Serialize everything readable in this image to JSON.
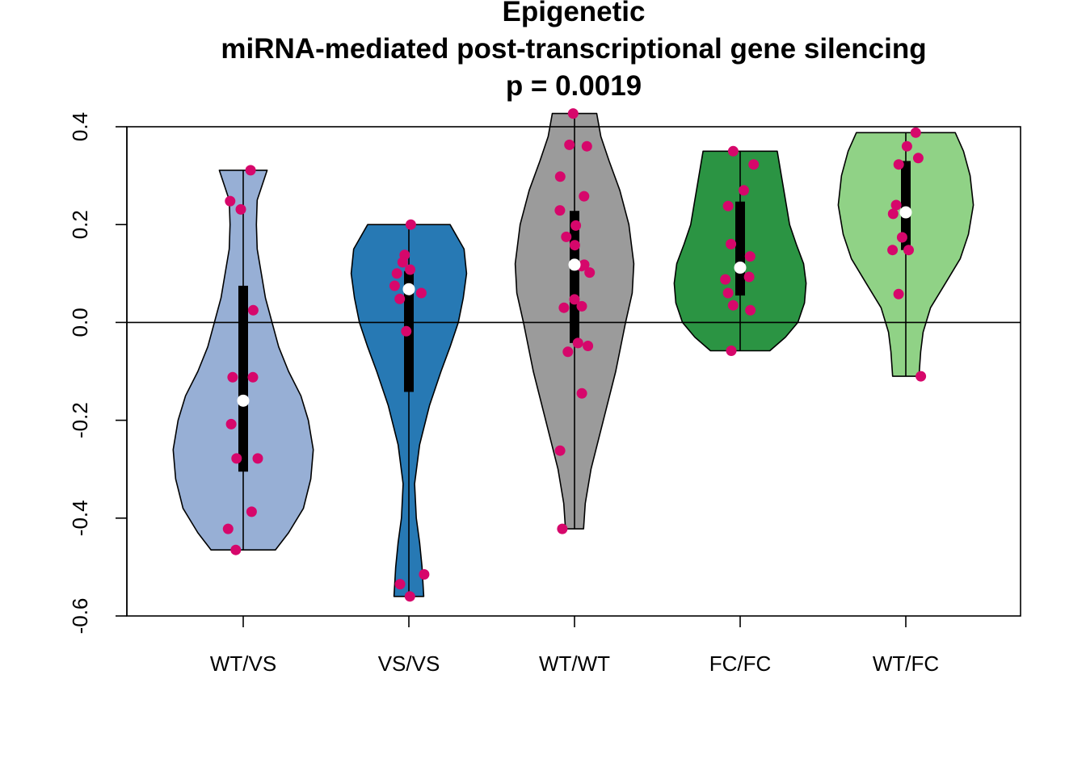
{
  "chart_data": {
    "type": "violin",
    "title_lines": [
      "Epigenetic",
      "miRNA-mediated post-transcriptional gene silencing",
      "p = 0.0019"
    ],
    "xlabel": "",
    "ylabel": "",
    "ylim": [
      -0.6,
      0.4
    ],
    "yticks": [
      -0.6,
      -0.4,
      -0.2,
      0.0,
      0.2,
      0.4
    ],
    "ytick_labels": [
      "-0.6",
      "-0.4",
      "-0.2",
      "0.0",
      "0.2",
      "0.4"
    ],
    "reference_line": 0.0,
    "grid": false,
    "categories": [
      "WT/VS",
      "VS/VS",
      "WT/WT",
      "FC/FC",
      "WT/FC"
    ],
    "colors": {
      "fills": [
        "#97afd5",
        "#2779b4",
        "#9b9b9b",
        "#2b9443",
        "#90d286"
      ],
      "points": "#d6076b",
      "median": "#ffffff",
      "box": "#000000"
    },
    "series": [
      {
        "category": "WT/VS",
        "min": -0.465,
        "max": 0.311,
        "q1": -0.305,
        "median": -0.16,
        "q3": 0.075,
        "density_profile": [
          [
            -0.465,
            0.39
          ],
          [
            -0.43,
            0.55
          ],
          [
            -0.38,
            0.73
          ],
          [
            -0.32,
            0.82
          ],
          [
            -0.26,
            0.85
          ],
          [
            -0.2,
            0.79
          ],
          [
            -0.15,
            0.7
          ],
          [
            -0.1,
            0.55
          ],
          [
            -0.05,
            0.43
          ],
          [
            0.0,
            0.35
          ],
          [
            0.05,
            0.27
          ],
          [
            0.1,
            0.22
          ],
          [
            0.15,
            0.17
          ],
          [
            0.2,
            0.16
          ],
          [
            0.25,
            0.17
          ],
          [
            0.311,
            0.29
          ]
        ],
        "points": [
          0.311,
          0.248,
          0.231,
          0.025,
          -0.112,
          -0.112,
          -0.208,
          -0.278,
          -0.278,
          -0.387,
          -0.422,
          -0.465
        ]
      },
      {
        "category": "VS/VS",
        "min": -0.56,
        "max": 0.2,
        "q1": -0.142,
        "median": 0.068,
        "q3": 0.105,
        "density_profile": [
          [
            -0.56,
            0.18
          ],
          [
            -0.5,
            0.16
          ],
          [
            -0.45,
            0.13
          ],
          [
            -0.4,
            0.09
          ],
          [
            -0.33,
            0.07
          ],
          [
            -0.25,
            0.13
          ],
          [
            -0.17,
            0.25
          ],
          [
            -0.1,
            0.39
          ],
          [
            -0.05,
            0.5
          ],
          [
            0.0,
            0.6
          ],
          [
            0.05,
            0.66
          ],
          [
            0.1,
            0.7
          ],
          [
            0.15,
            0.67
          ],
          [
            0.2,
            0.5
          ]
        ],
        "points": [
          0.2,
          0.138,
          0.123,
          0.108,
          0.1,
          0.075,
          0.06,
          0.048,
          -0.018,
          -0.515,
          -0.535,
          -0.56
        ]
      },
      {
        "category": "WT/WT",
        "min": -0.422,
        "max": 0.427,
        "q1": -0.042,
        "median": 0.118,
        "q3": 0.228,
        "density_profile": [
          [
            -0.422,
            0.11
          ],
          [
            -0.37,
            0.13
          ],
          [
            -0.3,
            0.2
          ],
          [
            -0.2,
            0.35
          ],
          [
            -0.1,
            0.5
          ],
          [
            0.0,
            0.62
          ],
          [
            0.06,
            0.7
          ],
          [
            0.12,
            0.72
          ],
          [
            0.2,
            0.66
          ],
          [
            0.27,
            0.55
          ],
          [
            0.33,
            0.42
          ],
          [
            0.38,
            0.32
          ],
          [
            0.427,
            0.27
          ]
        ],
        "points": [
          0.427,
          0.363,
          0.36,
          0.298,
          0.258,
          0.229,
          0.198,
          0.175,
          0.158,
          0.118,
          0.115,
          0.102,
          0.047,
          0.033,
          0.03,
          -0.042,
          -0.048,
          -0.06,
          -0.145,
          -0.262,
          -0.422
        ]
      },
      {
        "category": "FC/FC",
        "min": -0.058,
        "max": 0.35,
        "q1": 0.055,
        "median": 0.112,
        "q3": 0.247,
        "density_profile": [
          [
            -0.058,
            0.36
          ],
          [
            -0.03,
            0.55
          ],
          [
            0.0,
            0.7
          ],
          [
            0.04,
            0.78
          ],
          [
            0.08,
            0.8
          ],
          [
            0.12,
            0.77
          ],
          [
            0.16,
            0.68
          ],
          [
            0.2,
            0.6
          ],
          [
            0.25,
            0.55
          ],
          [
            0.3,
            0.5
          ],
          [
            0.35,
            0.45
          ]
        ],
        "points": [
          0.35,
          0.323,
          0.27,
          0.238,
          0.16,
          0.135,
          0.093,
          0.088,
          0.06,
          0.035,
          0.025,
          -0.058
        ]
      },
      {
        "category": "WT/FC",
        "min": -0.11,
        "max": 0.388,
        "q1": 0.148,
        "median": 0.225,
        "q3": 0.33,
        "density_profile": [
          [
            -0.11,
            0.16
          ],
          [
            -0.06,
            0.18
          ],
          [
            -0.02,
            0.21
          ],
          [
            0.03,
            0.3
          ],
          [
            0.08,
            0.48
          ],
          [
            0.13,
            0.66
          ],
          [
            0.18,
            0.76
          ],
          [
            0.24,
            0.82
          ],
          [
            0.3,
            0.78
          ],
          [
            0.35,
            0.7
          ],
          [
            0.388,
            0.6
          ]
        ],
        "points": [
          0.388,
          0.36,
          0.336,
          0.323,
          0.24,
          0.222,
          0.174,
          0.148,
          0.148,
          0.058,
          -0.11
        ]
      }
    ]
  }
}
